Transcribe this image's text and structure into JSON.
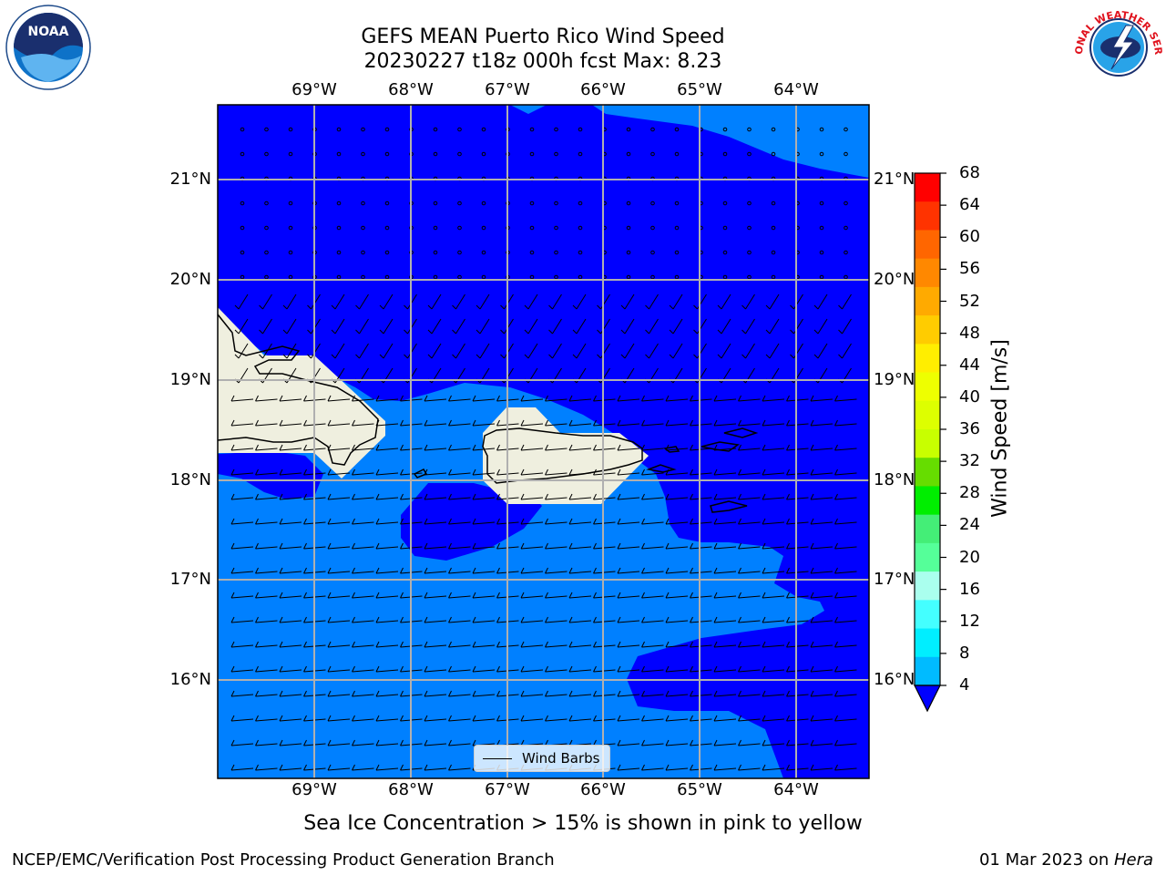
{
  "header": {
    "title_line1": "GEFS MEAN Puerto Rico Wind Speed",
    "title_line2": "20230227 t18z 000h fcst   Max: 8.23"
  },
  "logos": {
    "noaa_text": "NOAA",
    "nws_text": "NATIONAL WEATHER SERVICE"
  },
  "map": {
    "lon_labels": [
      "69°W",
      "68°W",
      "67°W",
      "66°W",
      "65°W",
      "64°W"
    ],
    "lat_labels": [
      "21°N",
      "20°N",
      "19°N",
      "18°N",
      "17°N",
      "16°N"
    ],
    "legend_label": "Wind Barbs",
    "colors": {
      "band_4_8": "#0080ff",
      "band_below_4": "#0000ff",
      "land": "#efefdf",
      "grid": "#b0b0b0"
    }
  },
  "colorbar": {
    "label": "Wind Speed [m/s]",
    "ticks": [
      "68",
      "64",
      "60",
      "56",
      "52",
      "48",
      "44",
      "40",
      "36",
      "32",
      "28",
      "24",
      "20",
      "16",
      "12",
      "8",
      "4"
    ],
    "colors": [
      "#ff0000",
      "#ff3300",
      "#ff6600",
      "#ff8800",
      "#ffaa00",
      "#ffcc00",
      "#ffee00",
      "#eeff00",
      "#ddff00",
      "#c8ff00",
      "#66dd00",
      "#00ee00",
      "#44ee77",
      "#55ff99",
      "#aaffee",
      "#44ffff",
      "#00eeff",
      "#00bbff",
      "#0080ff",
      "#0000ff"
    ]
  },
  "footer": {
    "note": "Sea Ice Concentration > 15% is shown in pink to yellow",
    "branch": "NCEP/EMC/Verification Post Processing Product Generation Branch",
    "date_prefix": "01 Mar 2023 on ",
    "machine": "Hera"
  }
}
